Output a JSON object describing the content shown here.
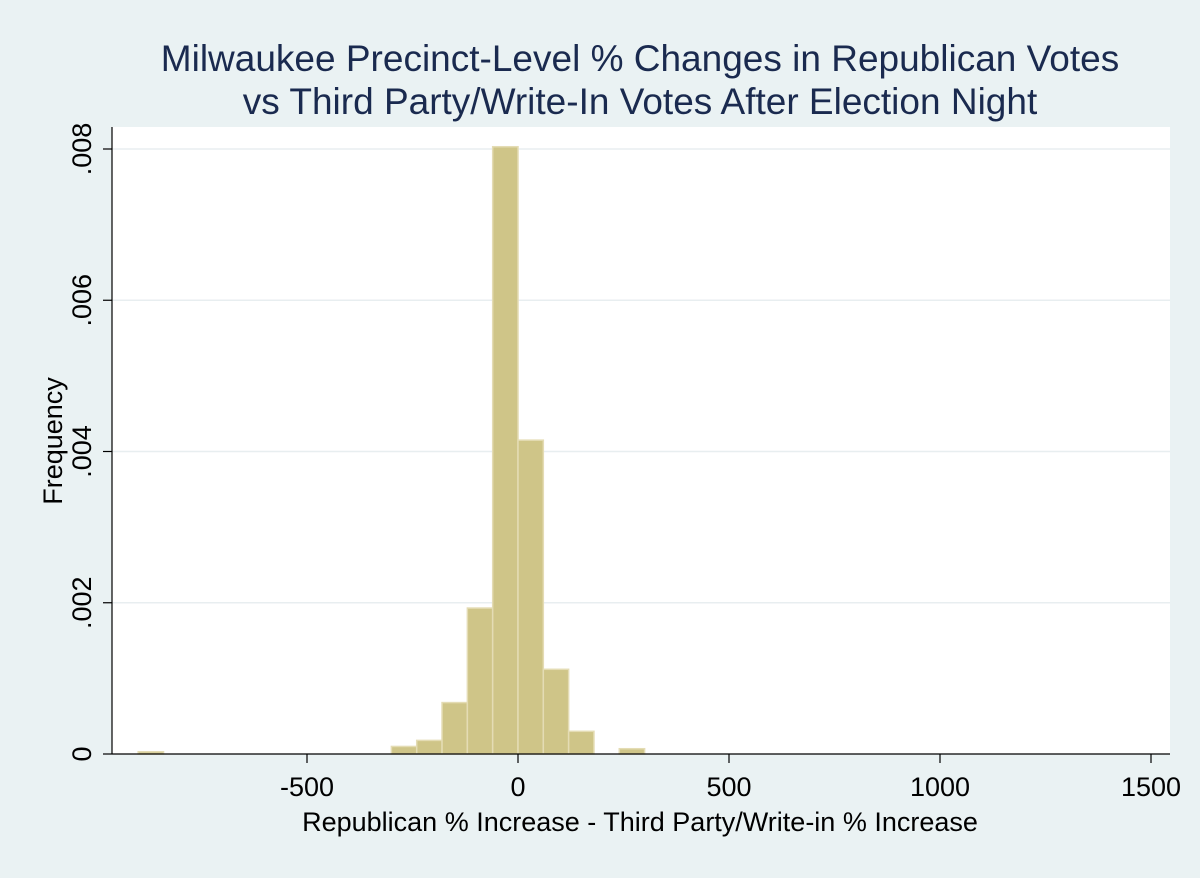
{
  "chart_data": {
    "type": "bar",
    "title": [
      "Milwaukee Precinct-Level % Changes in Republican Votes",
      "vs Third Party/Write-In Votes After Election Night"
    ],
    "xlabel": "Republican % Increase - Third Party/Write-in % Increase",
    "ylabel": "Frequency",
    "xlim": [
      -900,
      1550
    ],
    "ylim": [
      0,
      0.0083
    ],
    "x_ticks": [
      -500,
      0,
      500,
      1000,
      1500
    ],
    "x_tick_labels": [
      "-500",
      "0",
      "500",
      "1000",
      "1500"
    ],
    "y_ticks": [
      0,
      0.002,
      0.004,
      0.006,
      0.008
    ],
    "y_tick_labels": [
      "0",
      ".002",
      ".004",
      ".006",
      ".008"
    ],
    "grid": true,
    "bin_width": 60,
    "bins": [
      {
        "x0": -900,
        "x1": -840,
        "value": 3e-05
      },
      {
        "x0": -300,
        "x1": -240,
        "value": 0.0001
      },
      {
        "x0": -240,
        "x1": -180,
        "value": 0.00018
      },
      {
        "x0": -180,
        "x1": -120,
        "value": 0.00068
      },
      {
        "x0": -120,
        "x1": -60,
        "value": 0.00193
      },
      {
        "x0": -60,
        "x1": 0,
        "value": 0.00803
      },
      {
        "x0": 0,
        "x1": 60,
        "value": 0.00415
      },
      {
        "x0": 60,
        "x1": 120,
        "value": 0.00112
      },
      {
        "x0": 120,
        "x1": 180,
        "value": 0.0003
      },
      {
        "x0": 240,
        "x1": 300,
        "value": 7e-05
      }
    ],
    "colors": {
      "background": "#eaf2f3",
      "plot_background": "#ffffff",
      "bar_fill": "#cfc588",
      "bar_stroke": "#e4dcb4",
      "title": "#1a2a4f",
      "grid": "#e8eef0"
    }
  }
}
